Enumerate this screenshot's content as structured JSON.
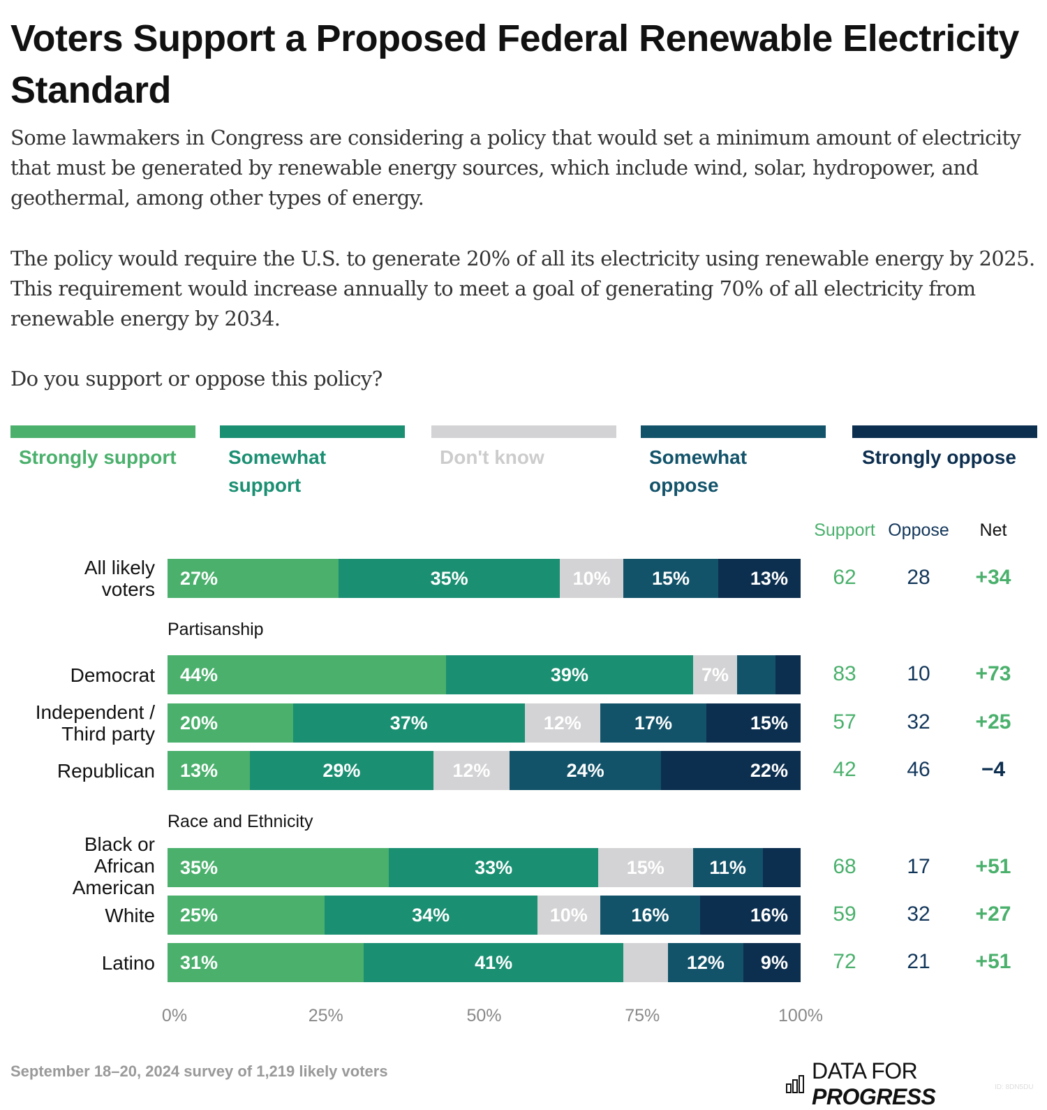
{
  "title": "Voters Support a Proposed Federal Renewable Electricity Standard",
  "paragraphs": [
    "Some lawmakers in Congress are considering a policy that would set a minimum amount of electricity that must be generated by renewable energy sources, which include wind, solar, hydropower, and geothermal, among other types of energy.",
    "The policy would require the U.S. to generate 20% of all its electricity using renewable energy by 2025. This requirement would increase annually to meet a goal of generating 70% of all electricity from renewable energy by 2034.",
    "Do you support or oppose this policy?"
  ],
  "chart_data": {
    "type": "bar",
    "orientation": "horizontal-stacked",
    "series": [
      {
        "name": "Strongly support",
        "color": "#4ab06c"
      },
      {
        "name": "Somewhat support",
        "color": "#1a8f72"
      },
      {
        "name": "Don't know",
        "color": "#d3d3d5"
      },
      {
        "name": "Somewhat oppose",
        "color": "#12536a"
      },
      {
        "name": "Strongly oppose",
        "color": "#0c2e4f"
      }
    ],
    "columns": {
      "support": "Support",
      "oppose": "Oppose",
      "net": "Net"
    },
    "groups": [
      "",
      "Partisanship",
      "Race and Ethnicity"
    ],
    "rows": [
      {
        "label": "All likely voters",
        "group": 0,
        "values": [
          27,
          35,
          10,
          15,
          13
        ],
        "support": "62",
        "oppose": "28",
        "net": "+34"
      },
      {
        "label": "Democrat",
        "group": 1,
        "values": [
          44,
          39,
          7,
          6,
          4
        ],
        "labeled": [
          true,
          true,
          true,
          false,
          false
        ],
        "support": "83",
        "oppose": "10",
        "net": "+73"
      },
      {
        "label": "Independent / Third party",
        "group": 1,
        "values": [
          20,
          37,
          12,
          17,
          15
        ],
        "support": "57",
        "oppose": "32",
        "net": "+25"
      },
      {
        "label": "Republican",
        "group": 1,
        "values": [
          13,
          29,
          12,
          24,
          22
        ],
        "support": "42",
        "oppose": "46",
        "net": "−4"
      },
      {
        "label": "Black or African American",
        "group": 2,
        "values": [
          35,
          33,
          15,
          11,
          6
        ],
        "labeled": [
          true,
          true,
          true,
          true,
          false
        ],
        "support": "68",
        "oppose": "17",
        "net": "+51"
      },
      {
        "label": "White",
        "group": 2,
        "values": [
          25,
          34,
          10,
          16,
          16
        ],
        "support": "59",
        "oppose": "32",
        "net": "+27"
      },
      {
        "label": "Latino",
        "group": 2,
        "values": [
          31,
          41,
          7,
          12,
          9
        ],
        "labeled": [
          true,
          true,
          false,
          true,
          true
        ],
        "support": "72",
        "oppose": "21",
        "net": "+51"
      }
    ],
    "xticks": [
      "0%",
      "25%",
      "50%",
      "75%",
      "100%"
    ],
    "xlim": [
      0,
      100
    ]
  },
  "footer": {
    "source": "September 18–20, 2024 survey of 1,219 likely voters",
    "logo": "DATA FOR PROGRESS",
    "id": "ID: 8DN5DU"
  }
}
